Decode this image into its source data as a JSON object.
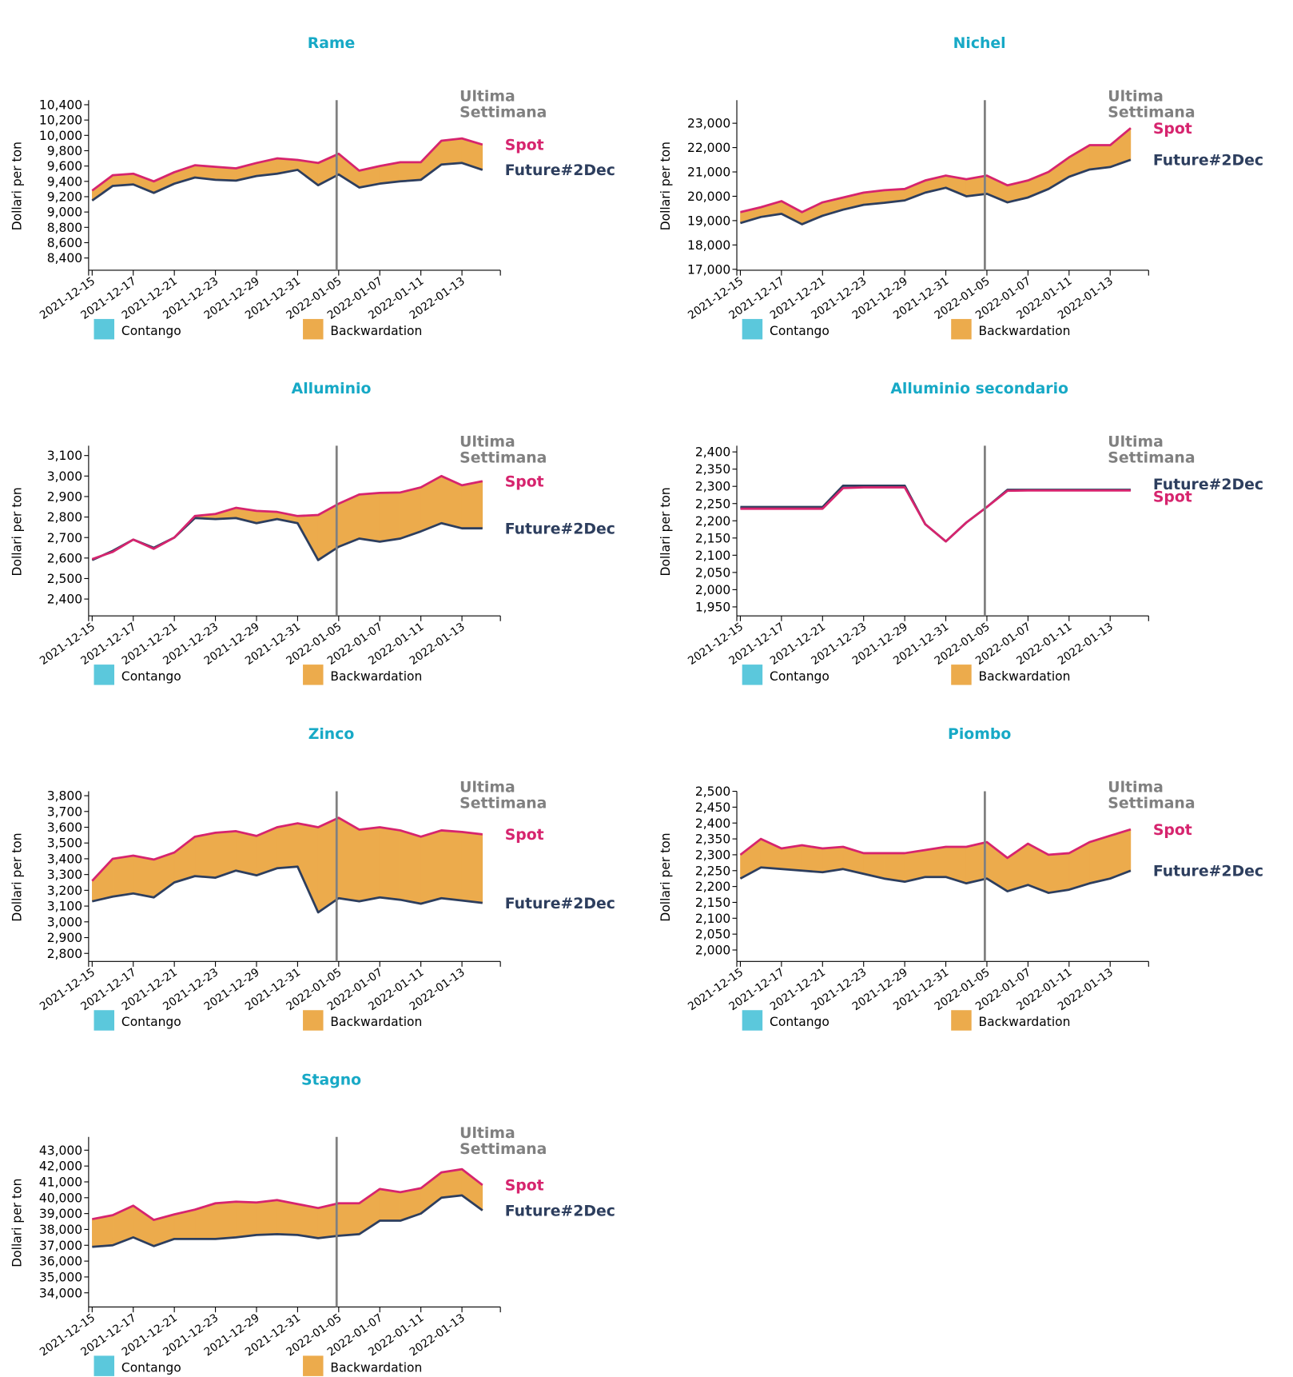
{
  "chart_data": [
    {
      "type": "band",
      "title": "Rame",
      "y_label": "Dollari per ton",
      "categories": [
        "2021-12-15",
        null,
        "2021-12-17",
        null,
        "2021-12-21",
        null,
        "2021-12-23",
        null,
        "2021-12-29",
        null,
        "2021-12-31",
        null,
        "2022-01-05",
        null,
        "2022-01-07",
        null,
        "2022-01-11",
        null,
        "2022-01-13",
        null
      ],
      "series": [
        {
          "name": "Spot",
          "color": "#d6246e",
          "values": [
            9280,
            9480,
            9500,
            9400,
            9520,
            9610,
            9590,
            9570,
            9640,
            9700,
            9680,
            9640,
            9760,
            9540,
            9600,
            9650,
            9650,
            9930,
            9960,
            9880
          ]
        },
        {
          "name": "Future#2Dec",
          "color": "#2d3e5e",
          "values": [
            9150,
            9340,
            9360,
            9250,
            9370,
            9450,
            9420,
            9410,
            9470,
            9500,
            9550,
            9350,
            9490,
            9320,
            9370,
            9400,
            9420,
            9620,
            9640,
            9550
          ]
        }
      ],
      "ylim": [
        8240,
        10460
      ],
      "yticks": [
        {
          "value": 8400,
          "label": "8,400"
        },
        {
          "value": 8600,
          "label": "8,600"
        },
        {
          "value": 8800,
          "label": "8,800"
        },
        {
          "value": 9000,
          "label": "9,000"
        },
        {
          "value": 9200,
          "label": "9,200"
        },
        {
          "value": 9400,
          "label": "9,400"
        },
        {
          "value": 9600,
          "label": "9,600"
        },
        {
          "value": 9800,
          "label": "9,800"
        },
        {
          "value": 10000,
          "label": "10,000"
        },
        {
          "value": 10200,
          "label": "10,200"
        },
        {
          "value": 10400,
          "label": "10,400"
        }
      ],
      "legend": [
        {
          "name": "Contango",
          "color": "#5bc8dc"
        },
        {
          "name": "Backwardation",
          "color": "#ecab4c"
        }
      ],
      "annotation": {
        "text": [
          "Ultima",
          "Settimana"
        ],
        "x": 11.9
      }
    },
    {
      "type": "band",
      "title": "Nichel",
      "y_label": "Dollari per ton",
      "categories": [
        "2021-12-15",
        null,
        "2021-12-17",
        null,
        "2021-12-21",
        null,
        "2021-12-23",
        null,
        "2021-12-29",
        null,
        "2021-12-31",
        null,
        "2022-01-05",
        null,
        "2022-01-07",
        null,
        "2022-01-11",
        null,
        "2022-01-13",
        null
      ],
      "series": [
        {
          "name": "Spot",
          "color": "#d6246e",
          "values": [
            19350,
            19550,
            19800,
            19350,
            19750,
            19950,
            20150,
            20250,
            20300,
            20650,
            20850,
            20700,
            20850,
            20450,
            20650,
            21000,
            21600,
            22100,
            22100,
            22800
          ]
        },
        {
          "name": "Future#2Dec",
          "color": "#2d3e5e",
          "values": [
            18900,
            19150,
            19280,
            18850,
            19200,
            19450,
            19650,
            19730,
            19830,
            20150,
            20350,
            20000,
            20100,
            19750,
            19950,
            20300,
            20800,
            21100,
            21200,
            21500
          ]
        }
      ],
      "ylim": [
        16960,
        23950
      ],
      "yticks": [
        {
          "value": 17000,
          "label": "17,000"
        },
        {
          "value": 18000,
          "label": "18,000"
        },
        {
          "value": 19000,
          "label": "19,000"
        },
        {
          "value": 20000,
          "label": "20,000"
        },
        {
          "value": 21000,
          "label": "21,000"
        },
        {
          "value": 22000,
          "label": "22,000"
        },
        {
          "value": 23000,
          "label": "23,000"
        }
      ],
      "legend": [
        {
          "name": "Contango",
          "color": "#5bc8dc"
        },
        {
          "name": "Backwardation",
          "color": "#ecab4c"
        }
      ],
      "annotation": {
        "text": [
          "Ultima",
          "Settimana"
        ],
        "x": 11.9
      }
    },
    {
      "type": "band",
      "title": "Alluminio",
      "y_label": "Dollari per ton",
      "categories": [
        "2021-12-15",
        null,
        "2021-12-17",
        null,
        "2021-12-21",
        null,
        "2021-12-23",
        null,
        "2021-12-29",
        null,
        "2021-12-31",
        null,
        "2022-01-05",
        null,
        "2022-01-07",
        null,
        "2022-01-11",
        null,
        "2022-01-13",
        null
      ],
      "series": [
        {
          "name": "Spot",
          "color": "#d6246e",
          "values": [
            2595,
            2630,
            2690,
            2645,
            2700,
            2805,
            2815,
            2845,
            2830,
            2825,
            2805,
            2810,
            2865,
            2910,
            2918,
            2920,
            2945,
            3000,
            2955,
            2975
          ]
        },
        {
          "name": "Future#2Dec",
          "color": "#2d3e5e",
          "values": [
            2590,
            2635,
            2690,
            2650,
            2700,
            2795,
            2790,
            2795,
            2770,
            2790,
            2770,
            2590,
            2655,
            2695,
            2680,
            2695,
            2730,
            2770,
            2745,
            2745
          ]
        }
      ],
      "ylim": [
        2318,
        3148
      ],
      "yticks": [
        {
          "value": 2400,
          "label": "2,400"
        },
        {
          "value": 2500,
          "label": "2,500"
        },
        {
          "value": 2600,
          "label": "2,600"
        },
        {
          "value": 2700,
          "label": "2,700"
        },
        {
          "value": 2800,
          "label": "2,800"
        },
        {
          "value": 2900,
          "label": "2,900"
        },
        {
          "value": 3000,
          "label": "3,000"
        },
        {
          "value": 3100,
          "label": "3,100"
        }
      ],
      "legend": [
        {
          "name": "Contango",
          "color": "#5bc8dc"
        },
        {
          "name": "Backwardation",
          "color": "#ecab4c"
        }
      ],
      "annotation": {
        "text": [
          "Ultima",
          "Settimana"
        ],
        "x": 11.9
      }
    },
    {
      "type": "band",
      "title": "Alluminio secondario",
      "y_label": "Dollari per ton",
      "categories": [
        "2021-12-15",
        null,
        "2021-12-17",
        null,
        "2021-12-21",
        null,
        "2021-12-23",
        null,
        "2021-12-29",
        null,
        "2021-12-31",
        null,
        "2022-01-05",
        null,
        "2022-01-07",
        null,
        "2022-01-11",
        null,
        "2022-01-13",
        null
      ],
      "series": [
        {
          "name": "Spot",
          "color": "#d6246e",
          "values": [
            2235,
            2235,
            2235,
            2235,
            2235,
            2295,
            2297,
            2297,
            2297,
            2190,
            2140,
            2195,
            2240,
            2287,
            2288,
            2288,
            2288,
            2288,
            2288,
            2288
          ]
        },
        {
          "name": "Future#2Dec",
          "color": "#2d3e5e",
          "values": [
            2240,
            2240,
            2240,
            2240,
            2240,
            2302,
            2302,
            2302,
            2302,
            2190,
            2140,
            2195,
            2240,
            2290,
            2290,
            2290,
            2290,
            2290,
            2290,
            2290
          ]
        }
      ],
      "ylim": [
        1924,
        2418
      ],
      "yticks": [
        {
          "value": 1950,
          "label": "1,950"
        },
        {
          "value": 2000,
          "label": "2,000"
        },
        {
          "value": 2050,
          "label": "2,050"
        },
        {
          "value": 2100,
          "label": "2,100"
        },
        {
          "value": 2150,
          "label": "2,150"
        },
        {
          "value": 2200,
          "label": "2,200"
        },
        {
          "value": 2250,
          "label": "2,250"
        },
        {
          "value": 2300,
          "label": "2,300"
        },
        {
          "value": 2350,
          "label": "2,350"
        },
        {
          "value": 2400,
          "label": "2,400"
        }
      ],
      "legend": [
        {
          "name": "Contango",
          "color": "#5bc8dc"
        },
        {
          "name": "Backwardation",
          "color": "#ecab4c"
        }
      ],
      "annotation": {
        "text": [
          "Ultima",
          "Settimana"
        ],
        "x": 11.9
      }
    },
    {
      "type": "band",
      "title": "Zinco",
      "y_label": "Dollari per ton",
      "categories": [
        "2021-12-15",
        null,
        "2021-12-17",
        null,
        "2021-12-21",
        null,
        "2021-12-23",
        null,
        "2021-12-29",
        null,
        "2021-12-31",
        null,
        "2022-01-05",
        null,
        "2022-01-07",
        null,
        "2022-01-11",
        null,
        "2022-01-13",
        null
      ],
      "series": [
        {
          "name": "Spot",
          "color": "#d6246e",
          "values": [
            3260,
            3400,
            3420,
            3395,
            3440,
            3540,
            3565,
            3575,
            3545,
            3600,
            3625,
            3600,
            3660,
            3585,
            3600,
            3580,
            3540,
            3580,
            3570,
            3555
          ]
        },
        {
          "name": "Future#2Dec",
          "color": "#2d3e5e",
          "values": [
            3130,
            3160,
            3180,
            3155,
            3250,
            3290,
            3280,
            3325,
            3295,
            3340,
            3350,
            3060,
            3150,
            3130,
            3155,
            3140,
            3115,
            3150,
            3135,
            3120
          ]
        }
      ],
      "ylim": [
        2749,
        3828
      ],
      "yticks": [
        {
          "value": 2800,
          "label": "2,800"
        },
        {
          "value": 2900,
          "label": "2,900"
        },
        {
          "value": 3000,
          "label": "3,000"
        },
        {
          "value": 3100,
          "label": "3,100"
        },
        {
          "value": 3200,
          "label": "3,200"
        },
        {
          "value": 3300,
          "label": "3,300"
        },
        {
          "value": 3400,
          "label": "3,400"
        },
        {
          "value": 3500,
          "label": "3,500"
        },
        {
          "value": 3600,
          "label": "3,600"
        },
        {
          "value": 3700,
          "label": "3,700"
        },
        {
          "value": 3800,
          "label": "3,800"
        }
      ],
      "legend": [
        {
          "name": "Contango",
          "color": "#5bc8dc"
        },
        {
          "name": "Backwardation",
          "color": "#ecab4c"
        }
      ],
      "annotation": {
        "text": [
          "Ultima",
          "Settimana"
        ],
        "x": 11.9
      }
    },
    {
      "type": "band",
      "title": "Piombo",
      "y_label": "Dollari per ton",
      "categories": [
        "2021-12-15",
        null,
        "2021-12-17",
        null,
        "2021-12-21",
        null,
        "2021-12-23",
        null,
        "2021-12-29",
        null,
        "2021-12-31",
        null,
        "2022-01-05",
        null,
        "2022-01-07",
        null,
        "2022-01-11",
        null,
        "2022-01-13",
        null
      ],
      "series": [
        {
          "name": "Spot",
          "color": "#d6246e",
          "values": [
            2300,
            2350,
            2320,
            2330,
            2320,
            2325,
            2305,
            2305,
            2305,
            2315,
            2325,
            2325,
            2340,
            2290,
            2335,
            2300,
            2305,
            2340,
            2360,
            2380
          ]
        },
        {
          "name": "Future#2Dec",
          "color": "#2d3e5e",
          "values": [
            2225,
            2260,
            2255,
            2250,
            2245,
            2255,
            2240,
            2225,
            2215,
            2230,
            2230,
            2210,
            2225,
            2185,
            2205,
            2180,
            2190,
            2210,
            2225,
            2250
          ]
        }
      ],
      "ylim": [
        1964,
        2500
      ],
      "yticks": [
        {
          "value": 2000,
          "label": "2,000"
        },
        {
          "value": 2050,
          "label": "2,050"
        },
        {
          "value": 2100,
          "label": "2,100"
        },
        {
          "value": 2150,
          "label": "2,150"
        },
        {
          "value": 2200,
          "label": "2,200"
        },
        {
          "value": 2250,
          "label": "2,250"
        },
        {
          "value": 2300,
          "label": "2,300"
        },
        {
          "value": 2350,
          "label": "2,350"
        },
        {
          "value": 2400,
          "label": "2,400"
        },
        {
          "value": 2450,
          "label": "2,450"
        },
        {
          "value": 2500,
          "label": "2,500"
        }
      ],
      "legend": [
        {
          "name": "Contango",
          "color": "#5bc8dc"
        },
        {
          "name": "Backwardation",
          "color": "#ecab4c"
        }
      ],
      "annotation": {
        "text": [
          "Ultima",
          "Settimana"
        ],
        "x": 11.9
      }
    },
    {
      "type": "band",
      "title": "Stagno",
      "y_label": "Dollari per ton",
      "categories": [
        "2021-12-15",
        null,
        "2021-12-17",
        null,
        "2021-12-21",
        null,
        "2021-12-23",
        null,
        "2021-12-29",
        null,
        "2021-12-31",
        null,
        "2022-01-05",
        null,
        "2022-01-07",
        null,
        "2022-01-11",
        null,
        "2022-01-13",
        null
      ],
      "series": [
        {
          "name": "Spot",
          "color": "#d6246e",
          "values": [
            38650,
            38900,
            39500,
            38600,
            38950,
            39250,
            39650,
            39750,
            39700,
            39850,
            39600,
            39350,
            39650,
            39650,
            40550,
            40350,
            40600,
            41600,
            41800,
            40800
          ]
        },
        {
          "name": "Future#2Dec",
          "color": "#2d3e5e",
          "values": [
            36900,
            37000,
            37500,
            36950,
            37400,
            37400,
            37400,
            37500,
            37650,
            37700,
            37650,
            37450,
            37600,
            37700,
            38550,
            38550,
            39000,
            40000,
            40150,
            39200
          ]
        }
      ],
      "ylim": [
        33105,
        43840
      ],
      "yticks": [
        {
          "value": 34000,
          "label": "34,000"
        },
        {
          "value": 35000,
          "label": "35,000"
        },
        {
          "value": 36000,
          "label": "36,000"
        },
        {
          "value": 37000,
          "label": "37,000"
        },
        {
          "value": 38000,
          "label": "38,000"
        },
        {
          "value": 39000,
          "label": "39,000"
        },
        {
          "value": 40000,
          "label": "40,000"
        },
        {
          "value": 41000,
          "label": "41,000"
        },
        {
          "value": 42000,
          "label": "42,000"
        },
        {
          "value": 43000,
          "label": "43,000"
        }
      ],
      "legend": [
        {
          "name": "Contango",
          "color": "#5bc8dc"
        },
        {
          "name": "Backwardation",
          "color": "#ecab4c"
        }
      ],
      "annotation": {
        "text": [
          "Ultima",
          "Settimana"
        ],
        "x": 11.9
      }
    }
  ]
}
